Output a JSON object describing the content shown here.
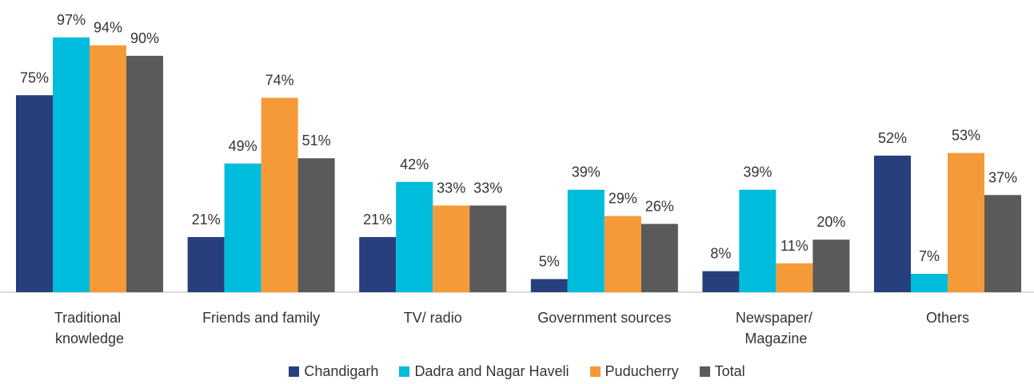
{
  "chart_data": {
    "type": "bar",
    "categories": [
      "Traditional knowledge",
      "Friends and family",
      "TV/ radio",
      "Government sources",
      "Newspaper/ Magazine",
      "Others"
    ],
    "ylim": [
      0,
      100
    ],
    "series": [
      {
        "name": "Chandigarh",
        "color": "#283f7e",
        "values": [
          75,
          21,
          21,
          5,
          8,
          52
        ],
        "value_labels": [
          "75%",
          "21%",
          "21%",
          "5%",
          "8%",
          "52%"
        ]
      },
      {
        "name": "Dadra and Nagar Haveli",
        "color": "#00bcdc",
        "values": [
          97,
          49,
          42,
          39,
          39,
          7
        ],
        "value_labels": [
          "97%",
          "49%",
          "42%",
          "39%",
          "39%",
          "7%"
        ]
      },
      {
        "name": "Puducherry",
        "color": "#f59a38",
        "values": [
          94,
          74,
          33,
          29,
          11,
          53
        ],
        "value_labels": [
          "94%",
          "74%",
          "33%",
          "29%",
          "11%",
          "53%"
        ]
      },
      {
        "name": "Total",
        "color": "#5a5a5a",
        "values": [
          90,
          51,
          33,
          26,
          20,
          37
        ],
        "value_labels": [
          "90%",
          "51%",
          "33%",
          "26%",
          "20%",
          "37%"
        ]
      }
    ]
  }
}
